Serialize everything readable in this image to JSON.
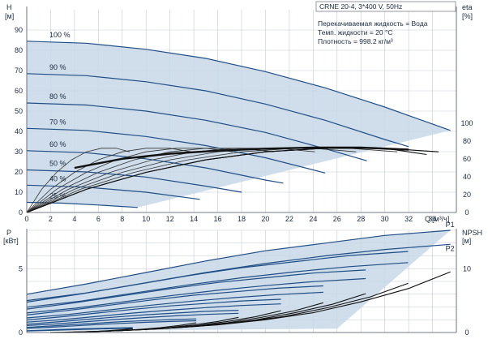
{
  "info": {
    "pump": "CRNE 20-4, 3*400 V, 50Hz",
    "liquid": "Перекачиваемая жидкость = Вода",
    "temp": "Темп. жидкости = 20 °C",
    "density": "Плотность = 998.2 кг/м³"
  },
  "colors": {
    "region": "#c8d8e8",
    "curve_blue": "#1f4e86",
    "curve_black": "#111111",
    "grid": "#c3cad4"
  },
  "chart_data": [
    {
      "type": "line",
      "title": "",
      "ylabel": "H",
      "yunit": "[м]",
      "y2label": "eta",
      "y2unit": "[%]",
      "xlabel": "Q",
      "xunit": "[м³/ч]",
      "xlim": [
        0,
        36
      ],
      "ylim": [
        0,
        100
      ],
      "y2lim": [
        0,
        100
      ],
      "x_ticks": [
        "0",
        "2",
        "4",
        "6",
        "8",
        "10",
        "12",
        "14",
        "16",
        "18",
        "20",
        "22",
        "24",
        "26",
        "28",
        "30",
        "32",
        "34"
      ],
      "y_ticks": [
        "0",
        "10",
        "20",
        "30",
        "40",
        "50",
        "60",
        "70",
        "80",
        "90"
      ],
      "y2_ticks": [
        "0",
        "20",
        "40",
        "60",
        "80",
        "100"
      ],
      "grid": true,
      "series": [
        {
          "name": "100 %",
          "x": [
            0,
            5,
            10,
            15,
            20,
            25,
            30,
            35.5
          ],
          "y": [
            84.5,
            83.5,
            80.5,
            76,
            69.5,
            61.5,
            52,
            40.5
          ]
        },
        {
          "name": "90 %",
          "x": [
            0,
            5,
            10,
            15,
            20,
            25,
            30,
            32
          ],
          "y": [
            68.5,
            67.5,
            64.5,
            60,
            53.5,
            45.5,
            36,
            32.5
          ]
        },
        {
          "name": "80 %",
          "x": [
            0,
            5,
            10,
            15,
            20,
            25,
            28.5
          ],
          "y": [
            54,
            53,
            50,
            45.5,
            39.5,
            31.5,
            25.5
          ]
        },
        {
          "name": "70 %",
          "x": [
            0,
            5,
            10,
            15,
            20,
            25
          ],
          "y": [
            41.5,
            40.5,
            37.5,
            33,
            27,
            19.5
          ]
        },
        {
          "name": "60 %",
          "x": [
            0,
            5,
            10,
            15,
            20,
            21.5
          ],
          "y": [
            30.5,
            29.5,
            26.5,
            22,
            16,
            14.5
          ]
        },
        {
          "name": "50 %",
          "x": [
            0,
            5,
            10,
            15,
            18
          ],
          "y": [
            21,
            20,
            17.5,
            13,
            10
          ]
        },
        {
          "name": "40 %",
          "x": [
            0,
            5,
            10,
            14.5
          ],
          "y": [
            13.5,
            12.5,
            10,
            6.5
          ]
        },
        {
          "name": "25 %",
          "x": [
            0,
            3,
            6,
            9.3
          ],
          "y": [
            5,
            4.6,
            3.7,
            2.5
          ]
        }
      ],
      "eta_curves": [
        {
          "x": [
            0,
            5,
            10,
            15,
            20,
            25,
            30,
            34.5
          ],
          "y": [
            0,
            26,
            45,
            59,
            68,
            72,
            72,
            68
          ]
        },
        {
          "x": [
            0,
            5,
            10,
            15,
            20,
            25,
            30,
            33.5
          ],
          "y": [
            0,
            26,
            45,
            59,
            68,
            72,
            72,
            65
          ]
        }
      ],
      "series_bold": [
        {
          "x": [
            4,
            8,
            12,
            16,
            20,
            24,
            28,
            32
          ],
          "y": [
            22,
            26.5,
            29,
            30.5,
            31.5,
            32,
            32,
            31
          ]
        }
      ]
    },
    {
      "type": "line",
      "title": "",
      "ylabel": "P",
      "yunit": "[кВт]",
      "y2label": "NPSH",
      "y2unit": "[м]",
      "xlim": [
        0,
        36
      ],
      "ylim": [
        0,
        8
      ],
      "y2lim": [
        0,
        16
      ],
      "y_ticks": [
        "0",
        "5"
      ],
      "y2_ticks": [
        "0",
        "10"
      ],
      "grid": true,
      "series": [
        {
          "name": "P1",
          "x": [
            0,
            5,
            10,
            15,
            20,
            25,
            30,
            35.5
          ],
          "y": [
            3.0,
            3.8,
            4.7,
            5.6,
            6.4,
            7.0,
            7.6,
            8.0
          ]
        },
        {
          "name": "P2",
          "x": [
            0,
            5,
            10,
            15,
            20,
            25,
            30,
            35.5
          ],
          "y": [
            2.5,
            3.1,
            3.9,
            4.7,
            5.4,
            6.0,
            6.5,
            6.9
          ]
        }
      ],
      "npsh_curves": [
        {
          "x": [
            8,
            12,
            16,
            20,
            24,
            28,
            32,
            35.5
          ],
          "y": [
            0.3,
            0.7,
            1.2,
            2.0,
            3.1,
            4.8,
            6.9,
            9.5
          ]
        }
      ]
    }
  ]
}
